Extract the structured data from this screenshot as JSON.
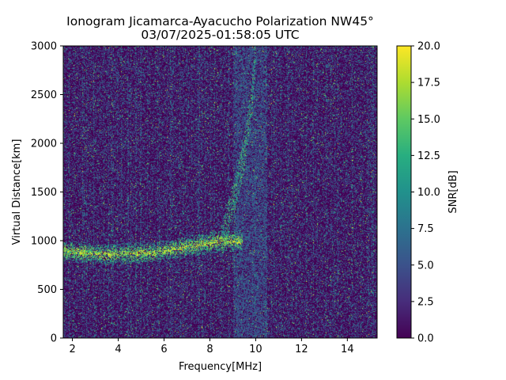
{
  "chart_data": {
    "type": "heatmap",
    "title": "Ionogram Jicamarca-Ayacucho Polarization NW45°",
    "subtitle": "03/07/2025-01:58:05 UTC",
    "xlabel": "Frequency[MHz]",
    "ylabel": "Virtual Distance[km]",
    "colorbar_label": "SNR[dB]",
    "colormap": "viridis",
    "xlim": [
      1.6,
      15.3
    ],
    "ylim": [
      0,
      3000
    ],
    "clim": [
      0.0,
      20.0
    ],
    "x_ticks": [
      2,
      4,
      6,
      8,
      10,
      12,
      14
    ],
    "x_tick_labels": [
      "2",
      "4",
      "6",
      "8",
      "10",
      "12",
      "14"
    ],
    "y_ticks": [
      0,
      500,
      1000,
      1500,
      2000,
      2500,
      3000
    ],
    "y_tick_labels": [
      "0",
      "500",
      "1000",
      "1500",
      "2000",
      "2500",
      "3000"
    ],
    "colorbar_ticks": [
      0.0,
      2.5,
      5.0,
      7.5,
      10.0,
      12.5,
      15.0,
      17.5,
      20.0
    ],
    "colorbar_tick_labels": [
      "0.0",
      "2.5",
      "5.0",
      "7.5",
      "10.0",
      "12.5",
      "15.0",
      "17.5",
      "20.0"
    ],
    "features": [
      {
        "name": "E/F trace",
        "x_range": [
          1.6,
          9.4
        ],
        "y": [
          900,
          880,
          860,
          870,
          880,
          920,
          960,
          1000
        ],
        "x": [
          1.6,
          2.5,
          3.5,
          4.5,
          5.5,
          6.5,
          7.5,
          8.5
        ],
        "snr": 20
      },
      {
        "name": "rising trace",
        "x": [
          8.5,
          9.0,
          9.4,
          9.8,
          10.0
        ],
        "y": [
          1000,
          1400,
          1800,
          2400,
          3000
        ],
        "snr": 16
      },
      {
        "name": "interference band",
        "x_range": [
          9.0,
          10.5
        ],
        "y_range": [
          0,
          3000
        ],
        "snr": 6
      }
    ]
  }
}
